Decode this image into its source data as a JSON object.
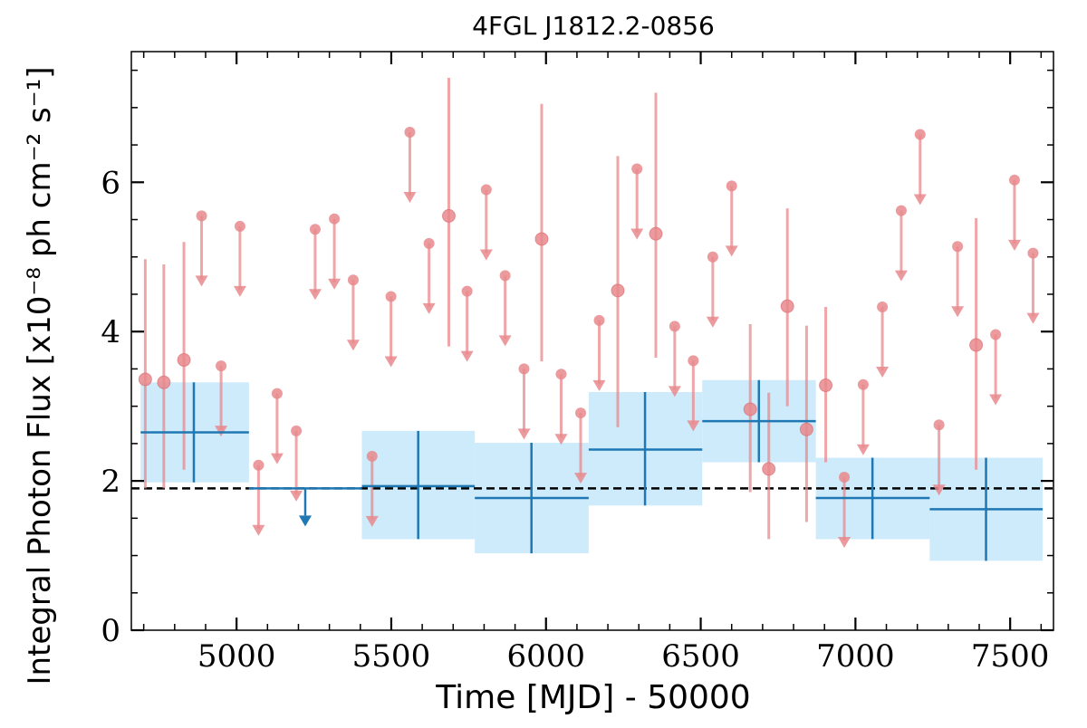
{
  "chart_data": {
    "type": "scatter",
    "title": "4FGL J1812.2-0856",
    "xlabel": "Time [MJD] - 50000",
    "ylabel": "Integral Photon Flux [x10⁻⁸ ph cm⁻² s⁻¹]",
    "xlim": [
      4660,
      7640
    ],
    "ylim": [
      0,
      7.75
    ],
    "x_ticks": [
      5000,
      5500,
      6000,
      6500,
      7000,
      7500
    ],
    "y_ticks": [
      0,
      2,
      4,
      6
    ],
    "grid": false,
    "legend": "none",
    "colors": {
      "short_bins": "#e8888c",
      "long_bins_marker": "#1f77b4",
      "long_bins_box": "#cdebfb",
      "reference_line": "#000000"
    },
    "reference_line": {
      "y": 1.9,
      "style": "dashed"
    },
    "short_bin_detections": [
      {
        "x": 4705,
        "y": 3.36,
        "ylo": 1.9,
        "yhi": 4.97
      },
      {
        "x": 4765,
        "y": 3.32,
        "ylo": 1.9,
        "yhi": 4.9
      },
      {
        "x": 4830,
        "y": 3.62,
        "ylo": 2.15,
        "yhi": 5.2
      },
      {
        "x": 5686,
        "y": 5.55,
        "ylo": 3.8,
        "yhi": 7.4
      },
      {
        "x": 5986,
        "y": 5.24,
        "ylo": 3.6,
        "yhi": 7.05
      },
      {
        "x": 6232,
        "y": 4.55,
        "ylo": 2.72,
        "yhi": 6.35
      },
      {
        "x": 6355,
        "y": 5.31,
        "ylo": 3.65,
        "yhi": 7.2
      },
      {
        "x": 6660,
        "y": 2.96,
        "ylo": 1.85,
        "yhi": 4.1
      },
      {
        "x": 6720,
        "y": 2.16,
        "ylo": 1.22,
        "yhi": 3.18
      },
      {
        "x": 6780,
        "y": 4.34,
        "ylo": 3.0,
        "yhi": 5.65
      },
      {
        "x": 6842,
        "y": 2.69,
        "ylo": 1.45,
        "yhi": 4.08
      },
      {
        "x": 6904,
        "y": 3.28,
        "ylo": 2.25,
        "yhi": 4.33
      },
      {
        "x": 7390,
        "y": 3.82,
        "ylo": 2.15,
        "yhi": 5.52
      }
    ],
    "short_bin_upper_limits": [
      {
        "x": 4887,
        "y": 5.55
      },
      {
        "x": 4950,
        "y": 3.54
      },
      {
        "x": 5011,
        "y": 5.41
      },
      {
        "x": 5071,
        "y": 2.21
      },
      {
        "x": 5131,
        "y": 3.17
      },
      {
        "x": 5193,
        "y": 2.67
      },
      {
        "x": 5254,
        "y": 5.37
      },
      {
        "x": 5316,
        "y": 5.51
      },
      {
        "x": 5377,
        "y": 4.69
      },
      {
        "x": 5438,
        "y": 2.33
      },
      {
        "x": 5499,
        "y": 4.47
      },
      {
        "x": 5560,
        "y": 6.67
      },
      {
        "x": 5622,
        "y": 5.18
      },
      {
        "x": 5745,
        "y": 4.54
      },
      {
        "x": 5807,
        "y": 5.9
      },
      {
        "x": 5868,
        "y": 4.75
      },
      {
        "x": 5929,
        "y": 3.5
      },
      {
        "x": 6049,
        "y": 3.43
      },
      {
        "x": 6112,
        "y": 2.91
      },
      {
        "x": 6172,
        "y": 4.15
      },
      {
        "x": 6294,
        "y": 6.18
      },
      {
        "x": 6416,
        "y": 4.07
      },
      {
        "x": 6476,
        "y": 3.61
      },
      {
        "x": 6539,
        "y": 5.0
      },
      {
        "x": 6600,
        "y": 5.95
      },
      {
        "x": 6964,
        "y": 2.05
      },
      {
        "x": 7025,
        "y": 3.29
      },
      {
        "x": 7087,
        "y": 4.33
      },
      {
        "x": 7148,
        "y": 5.62
      },
      {
        "x": 7209,
        "y": 6.64
      },
      {
        "x": 7270,
        "y": 2.75
      },
      {
        "x": 7330,
        "y": 5.14
      },
      {
        "x": 7453,
        "y": 3.96
      },
      {
        "x": 7514,
        "y": 6.03
      },
      {
        "x": 7574,
        "y": 5.05
      }
    ],
    "long_bins": [
      {
        "x": 4862,
        "xlo": 4690,
        "xhi": 5040,
        "y": 2.65,
        "ylo": 1.98,
        "yhi": 3.32
      },
      {
        "x": 5587,
        "xlo": 5405,
        "xhi": 5770,
        "y": 1.93,
        "ylo": 1.22,
        "yhi": 2.67
      },
      {
        "x": 5953,
        "xlo": 5770,
        "xhi": 6138,
        "y": 1.77,
        "ylo": 1.03,
        "yhi": 2.51
      },
      {
        "x": 6320,
        "xlo": 6138,
        "xhi": 6505,
        "y": 2.42,
        "ylo": 1.67,
        "yhi": 3.19
      },
      {
        "x": 6688,
        "xlo": 6505,
        "xhi": 6872,
        "y": 2.8,
        "ylo": 2.25,
        "yhi": 3.35
      },
      {
        "x": 7055,
        "xlo": 6872,
        "xhi": 7240,
        "y": 1.77,
        "ylo": 1.22,
        "yhi": 2.31
      },
      {
        "x": 7422,
        "xlo": 7240,
        "xhi": 7605,
        "y": 1.62,
        "ylo": 0.93,
        "yhi": 2.31
      }
    ],
    "long_bin_upper_limits": [
      {
        "x": 5222,
        "xlo": 5040,
        "xhi": 5405,
        "y": 1.9
      }
    ]
  }
}
